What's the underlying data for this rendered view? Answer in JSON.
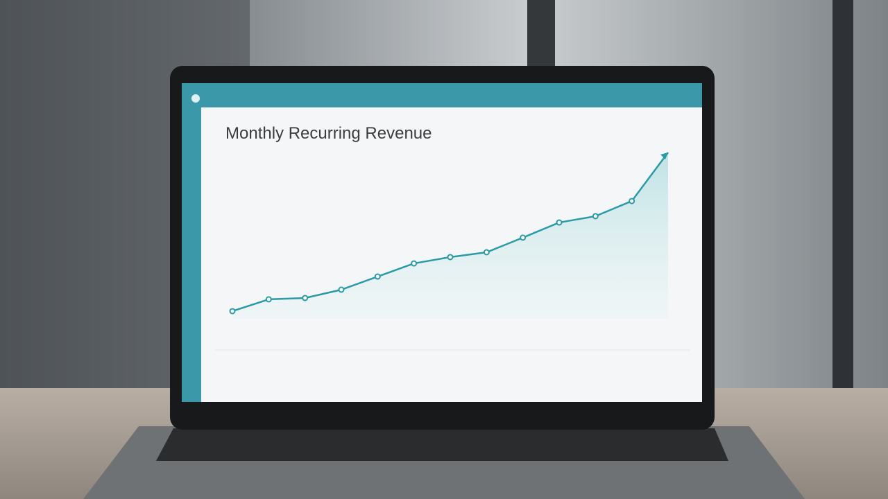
{
  "chart_data": {
    "type": "line",
    "title": "Monthly Recurring Revenue",
    "values": [
      4.6,
      11.7,
      12.5,
      17.5,
      25.4,
      33.3,
      37.1,
      40,
      48.8,
      57.9,
      61.7,
      70.8,
      100
    ],
    "color": "#2a9aa6",
    "ylim": [
      0,
      100
    ]
  }
}
